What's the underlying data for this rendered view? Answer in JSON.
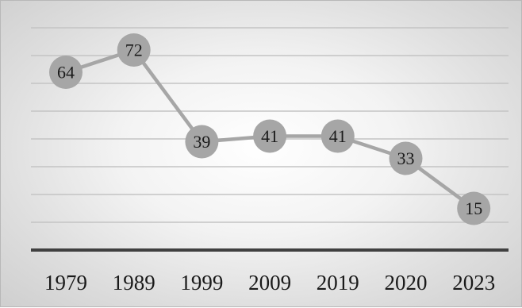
{
  "chart_data": {
    "type": "line",
    "title": "",
    "xlabel": "",
    "ylabel": "",
    "categories": [
      "1979",
      "1989",
      "1999",
      "2009",
      "2019",
      "2020",
      "2023"
    ],
    "series": [
      {
        "values": [
          64,
          72,
          39,
          41,
          41,
          33,
          15
        ]
      }
    ],
    "ylim": [
      0,
      80
    ],
    "grid": true,
    "legend": "none",
    "data_labels": true,
    "colors": {
      "line": "#a6a6a6",
      "marker": "#a6a6a6",
      "gridline": "#c4c4c4",
      "axis": "#404040",
      "label_text": "#1a1a1a"
    }
  }
}
